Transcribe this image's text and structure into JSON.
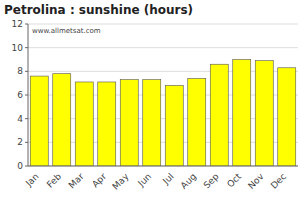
{
  "chart_data": {
    "type": "bar",
    "title": "Petrolina : sunshine (hours)",
    "categories": [
      "Jan",
      "Feb",
      "Mar",
      "Apr",
      "May",
      "Jun",
      "Jul",
      "Aug",
      "Sep",
      "Oct",
      "Nov",
      "Dec"
    ],
    "values": [
      7.6,
      7.8,
      7.1,
      7.1,
      7.3,
      7.3,
      6.8,
      7.4,
      8.6,
      9.0,
      8.9,
      8.3
    ],
    "color": "#ffff00",
    "ylim": [
      0,
      12
    ],
    "yticks": [
      0,
      2,
      4,
      6,
      8,
      10,
      12
    ],
    "grid": true,
    "annotations": [
      "www.allmetsat.com"
    ]
  }
}
